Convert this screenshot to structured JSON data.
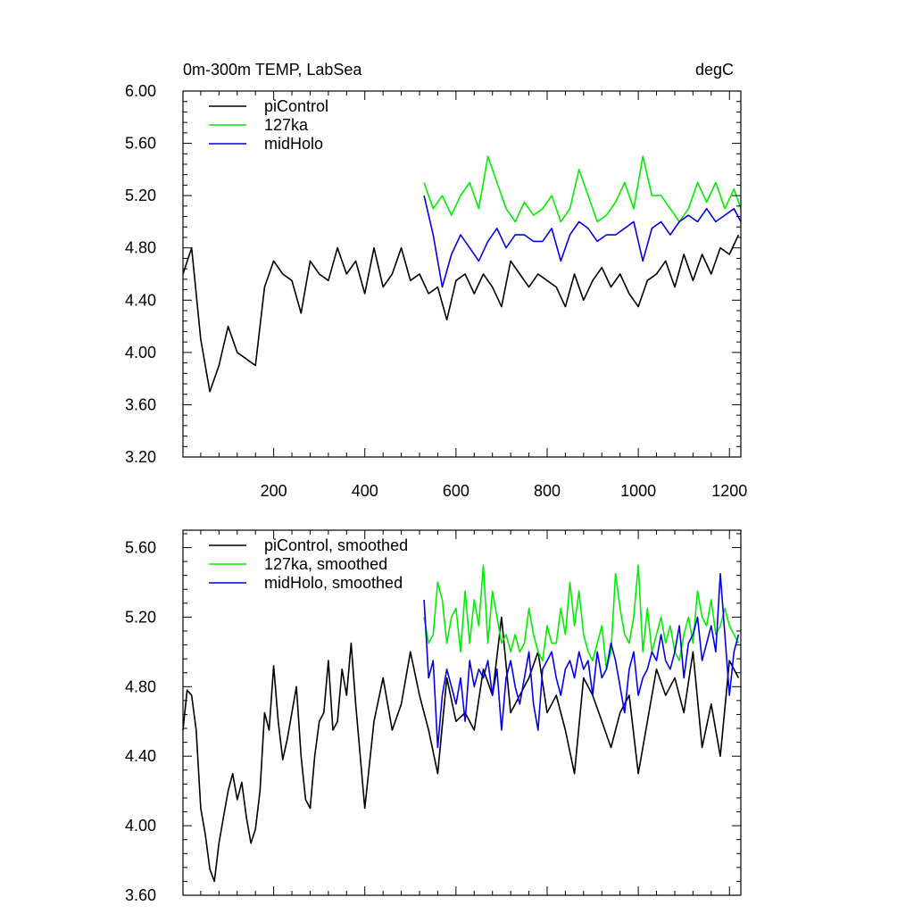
{
  "figure": {
    "title_left": "0m-300m TEMP, LabSea",
    "title_right": "degC"
  },
  "colors": {
    "piControl": "#000000",
    "127ka": "#00ee00",
    "midHolo": "#0000ee",
    "axis": "#000000"
  },
  "chart_data": [
    {
      "type": "line",
      "panel": "top",
      "title": "0m-300m TEMP, LabSea",
      "units": "degC",
      "xlim": [
        1,
        1225
      ],
      "ylim": [
        3.2,
        6.0
      ],
      "x_ticks": [
        200,
        400,
        600,
        800,
        1000,
        1200
      ],
      "x_tick_labels": [
        "200",
        "400",
        "600",
        "800",
        "1000",
        "1200"
      ],
      "y_ticks": [
        3.2,
        3.6,
        4.0,
        4.4,
        4.8,
        5.2,
        5.6,
        6.0
      ],
      "y_tick_labels": [
        "3.20",
        "3.60",
        "4.00",
        "4.40",
        "4.80",
        "5.20",
        "5.60",
        "6.00"
      ],
      "legend": {
        "placement": "top-left",
        "entries": [
          "piControl",
          "127ka",
          "midHolo"
        ]
      },
      "series": [
        {
          "name": "piControl",
          "color_key": "piControl",
          "x": [
            1,
            20,
            40,
            60,
            80,
            100,
            120,
            140,
            160,
            180,
            200,
            220,
            240,
            260,
            280,
            300,
            320,
            340,
            360,
            380,
            400,
            420,
            440,
            460,
            480,
            500,
            520,
            540,
            560,
            580,
            600,
            620,
            640,
            660,
            680,
            700,
            720,
            740,
            760,
            780,
            800,
            820,
            840,
            860,
            880,
            900,
            920,
            940,
            960,
            980,
            1000,
            1020,
            1040,
            1060,
            1080,
            1100,
            1120,
            1140,
            1160,
            1180,
            1200,
            1220
          ],
          "values": [
            4.6,
            4.8,
            4.1,
            3.7,
            3.9,
            4.2,
            4.0,
            3.95,
            3.9,
            4.5,
            4.7,
            4.6,
            4.55,
            4.3,
            4.7,
            4.6,
            4.55,
            4.8,
            4.6,
            4.7,
            4.45,
            4.8,
            4.5,
            4.6,
            4.8,
            4.55,
            4.6,
            4.45,
            4.5,
            4.25,
            4.55,
            4.6,
            4.45,
            4.6,
            4.5,
            4.35,
            4.7,
            4.6,
            4.5,
            4.6,
            4.55,
            4.5,
            4.35,
            4.6,
            4.4,
            4.55,
            4.65,
            4.5,
            4.6,
            4.45,
            4.35,
            4.55,
            4.6,
            4.7,
            4.5,
            4.75,
            4.55,
            4.75,
            4.6,
            4.8,
            4.75,
            4.9
          ]
        },
        {
          "name": "127ka",
          "color_key": "127ka",
          "x": [
            530,
            550,
            570,
            590,
            610,
            630,
            650,
            670,
            690,
            710,
            730,
            750,
            770,
            790,
            810,
            830,
            850,
            870,
            890,
            910,
            930,
            950,
            970,
            990,
            1010,
            1030,
            1050,
            1070,
            1090,
            1110,
            1130,
            1150,
            1170,
            1190,
            1210,
            1225
          ],
          "values": [
            5.3,
            5.1,
            5.2,
            5.05,
            5.2,
            5.3,
            5.1,
            5.5,
            5.3,
            5.1,
            5.0,
            5.15,
            5.05,
            5.1,
            5.2,
            5.0,
            5.1,
            5.4,
            5.2,
            5.0,
            5.05,
            5.15,
            5.3,
            5.1,
            5.5,
            5.2,
            5.2,
            5.1,
            5.0,
            5.1,
            5.3,
            5.15,
            5.3,
            5.1,
            5.25,
            5.1
          ]
        },
        {
          "name": "midHolo",
          "color_key": "midHolo",
          "x": [
            530,
            550,
            570,
            590,
            610,
            630,
            650,
            670,
            690,
            710,
            730,
            750,
            770,
            790,
            810,
            830,
            850,
            870,
            890,
            910,
            930,
            950,
            970,
            990,
            1010,
            1030,
            1050,
            1070,
            1090,
            1110,
            1130,
            1150,
            1170,
            1190,
            1210,
            1225
          ],
          "values": [
            5.2,
            4.9,
            4.5,
            4.75,
            4.9,
            4.8,
            4.7,
            4.85,
            4.95,
            4.8,
            4.9,
            4.9,
            4.85,
            4.85,
            4.95,
            4.7,
            4.9,
            5.0,
            4.95,
            4.85,
            4.9,
            4.9,
            4.95,
            5.0,
            4.7,
            4.95,
            5.0,
            4.9,
            5.0,
            5.05,
            5.0,
            5.1,
            5.0,
            5.05,
            5.1,
            5.0
          ]
        }
      ]
    },
    {
      "type": "line",
      "panel": "bottom",
      "title": "",
      "xlim": [
        1,
        1225
      ],
      "ylim": [
        3.6,
        5.7
      ],
      "x_ticks": [
        200,
        400,
        600,
        800,
        1000,
        1200
      ],
      "x_tick_labels": [],
      "y_ticks": [
        3.6,
        4.0,
        4.4,
        4.8,
        5.2,
        5.6
      ],
      "y_tick_labels": [
        "3.60",
        "4.00",
        "4.40",
        "4.80",
        "5.20",
        "5.60"
      ],
      "legend": {
        "placement": "top-left",
        "entries": [
          "piControl, smoothed",
          "127ka, smoothed",
          "midHolo, smoothed"
        ]
      },
      "series": [
        {
          "name": "piControl, smoothed",
          "color_key": "piControl",
          "x": [
            1,
            10,
            20,
            30,
            40,
            50,
            60,
            70,
            80,
            90,
            100,
            110,
            120,
            130,
            140,
            150,
            160,
            170,
            180,
            190,
            200,
            210,
            220,
            230,
            240,
            250,
            260,
            270,
            280,
            290,
            300,
            310,
            320,
            330,
            340,
            350,
            360,
            370,
            380,
            390,
            400,
            420,
            440,
            460,
            480,
            500,
            520,
            540,
            560,
            580,
            600,
            620,
            640,
            660,
            680,
            700,
            720,
            740,
            760,
            780,
            800,
            820,
            840,
            860,
            880,
            900,
            920,
            940,
            960,
            980,
            1000,
            1020,
            1040,
            1060,
            1080,
            1100,
            1120,
            1140,
            1160,
            1180,
            1200,
            1220
          ],
          "values": [
            4.55,
            4.78,
            4.75,
            4.55,
            4.1,
            3.95,
            3.75,
            3.68,
            3.9,
            4.05,
            4.2,
            4.3,
            4.15,
            4.25,
            4.05,
            3.9,
            3.98,
            4.2,
            4.65,
            4.55,
            4.92,
            4.6,
            4.38,
            4.5,
            4.65,
            4.8,
            4.4,
            4.15,
            4.1,
            4.4,
            4.6,
            4.65,
            4.95,
            4.55,
            4.6,
            4.9,
            4.75,
            5.05,
            4.7,
            4.4,
            4.1,
            4.6,
            4.85,
            4.55,
            4.7,
            5.0,
            4.75,
            4.55,
            4.3,
            4.85,
            4.6,
            4.65,
            4.55,
            4.9,
            4.75,
            5.2,
            4.65,
            4.75,
            4.85,
            5.0,
            4.65,
            4.75,
            4.55,
            4.3,
            4.85,
            4.75,
            4.6,
            4.45,
            4.65,
            4.75,
            4.3,
            4.6,
            4.9,
            4.75,
            4.85,
            4.65,
            5.0,
            4.45,
            4.7,
            4.4,
            4.95,
            4.85
          ]
        },
        {
          "name": "127ka, smoothed",
          "color_key": "127ka",
          "x": [
            530,
            540,
            550,
            560,
            570,
            580,
            590,
            600,
            610,
            620,
            630,
            640,
            650,
            660,
            670,
            680,
            690,
            700,
            710,
            720,
            730,
            740,
            750,
            760,
            770,
            780,
            790,
            800,
            810,
            820,
            830,
            840,
            850,
            860,
            870,
            880,
            890,
            900,
            910,
            920,
            930,
            940,
            950,
            960,
            970,
            980,
            990,
            1000,
            1010,
            1020,
            1030,
            1040,
            1050,
            1060,
            1070,
            1080,
            1090,
            1100,
            1110,
            1120,
            1130,
            1140,
            1150,
            1160,
            1170,
            1180,
            1190,
            1200,
            1210,
            1220
          ],
          "values": [
            5.2,
            5.05,
            5.1,
            5.4,
            5.3,
            5.05,
            5.2,
            5.25,
            5.0,
            5.35,
            5.05,
            5.3,
            5.15,
            5.5,
            5.05,
            5.35,
            5.2,
            5.05,
            5.1,
            5.0,
            5.1,
            5.0,
            5.05,
            5.25,
            5.1,
            5.0,
            4.95,
            5.15,
            5.05,
            5.05,
            5.25,
            5.1,
            5.4,
            5.15,
            5.35,
            5.1,
            5.0,
            4.95,
            5.05,
            5.15,
            4.9,
            5.0,
            5.45,
            5.25,
            5.1,
            5.05,
            5.2,
            5.5,
            5.0,
            5.25,
            5.0,
            5.1,
            5.2,
            5.05,
            5.15,
            5.0,
            4.95,
            5.1,
            5.2,
            5.05,
            5.35,
            5.2,
            5.15,
            5.3,
            5.1,
            5.15,
            5.25,
            5.15,
            5.1,
            5.05
          ]
        },
        {
          "name": "midHolo, smoothed",
          "color_key": "midHolo",
          "x": [
            530,
            540,
            550,
            560,
            570,
            580,
            590,
            600,
            610,
            620,
            630,
            640,
            650,
            660,
            670,
            680,
            690,
            700,
            710,
            720,
            730,
            740,
            750,
            760,
            770,
            780,
            790,
            800,
            810,
            820,
            830,
            840,
            850,
            860,
            870,
            880,
            890,
            900,
            910,
            920,
            930,
            940,
            950,
            960,
            970,
            980,
            990,
            1000,
            1010,
            1020,
            1030,
            1040,
            1050,
            1060,
            1070,
            1080,
            1090,
            1100,
            1110,
            1120,
            1130,
            1140,
            1150,
            1160,
            1170,
            1180,
            1190,
            1200,
            1210,
            1220
          ],
          "values": [
            5.3,
            4.85,
            4.95,
            4.45,
            4.75,
            4.9,
            4.8,
            4.7,
            4.85,
            4.6,
            4.95,
            4.8,
            4.9,
            4.85,
            4.95,
            4.75,
            4.9,
            4.55,
            4.85,
            4.95,
            4.8,
            4.7,
            4.85,
            5.0,
            4.7,
            4.55,
            4.9,
            4.95,
            5.0,
            4.85,
            4.75,
            4.9,
            4.95,
            4.85,
            5.0,
            4.9,
            4.95,
            4.75,
            5.0,
            4.85,
            4.9,
            5.05,
            4.95,
            4.8,
            4.65,
            4.9,
            5.0,
            4.75,
            4.85,
            4.9,
            5.0,
            4.95,
            5.1,
            4.95,
            4.9,
            5.0,
            5.15,
            4.85,
            5.05,
            5.1,
            5.2,
            4.95,
            5.05,
            5.15,
            5.0,
            5.45,
            5.1,
            4.75,
            5.0,
            5.1
          ]
        }
      ]
    }
  ]
}
